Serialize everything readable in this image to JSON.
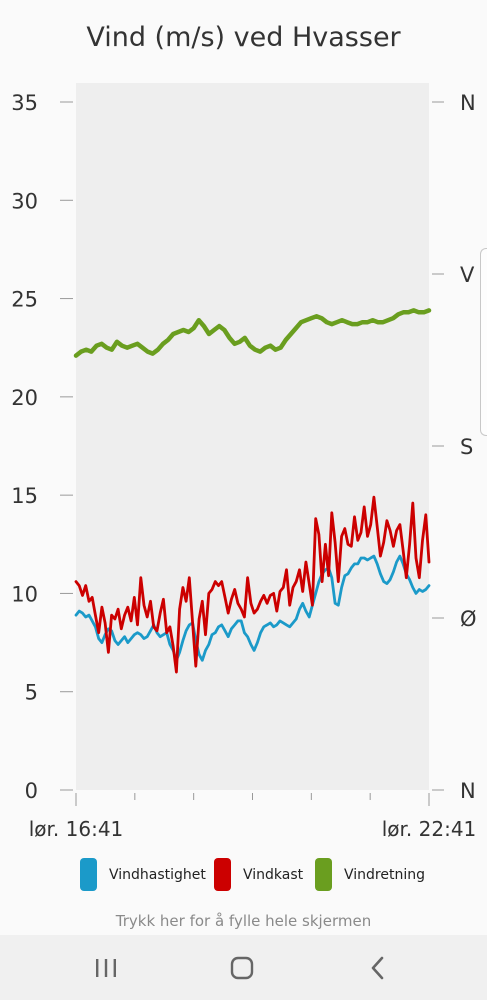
{
  "chart_data": {
    "type": "line",
    "title": "Vind (m/s) ved Hvasser",
    "x_start": "lør. 16:41",
    "x_end": "lør. 22:41",
    "ylim": [
      0,
      35
    ],
    "y_ticks": [
      "0",
      "5",
      "10",
      "15",
      "20",
      "25",
      "30",
      "35"
    ],
    "y2_ticks": [
      "N",
      "Ø",
      "S",
      "V",
      "N"
    ],
    "legend_position": "bottom",
    "grid": false,
    "series": [
      {
        "name": "Vindhastighet",
        "color": "#1b9ac9",
        "values": [
          8.9,
          9.1,
          9.0,
          8.8,
          8.9,
          8.6,
          8.3,
          7.7,
          7.5,
          7.9,
          8.2,
          8.1,
          7.6,
          7.4,
          7.6,
          7.8,
          7.5,
          7.7,
          7.9,
          8.0,
          7.9,
          7.7,
          7.8,
          8.1,
          8.4,
          8.0,
          7.8,
          7.9,
          8.0,
          7.4,
          7.1,
          6.6,
          7.0,
          7.6,
          8.1,
          8.4,
          8.5,
          7.6,
          6.9,
          6.6,
          7.1,
          7.4,
          7.9,
          8.0,
          8.3,
          8.4,
          8.1,
          7.8,
          8.2,
          8.4,
          8.6,
          8.6,
          8.0,
          7.8,
          7.4,
          7.1,
          7.5,
          8.0,
          8.3,
          8.4,
          8.5,
          8.3,
          8.4,
          8.6,
          8.5,
          8.4,
          8.3,
          8.5,
          8.7,
          9.2,
          9.5,
          9.1,
          8.8,
          9.4,
          10.0,
          10.6,
          11.0,
          11.2,
          11.3,
          10.8,
          9.5,
          9.4,
          10.3,
          10.9,
          11.0,
          11.3,
          11.5,
          11.5,
          11.8,
          11.8,
          11.7,
          11.8,
          11.9,
          11.5,
          11.0,
          10.6,
          10.5,
          10.7,
          11.1,
          11.6,
          11.9,
          11.5,
          11.0,
          10.7,
          10.3,
          10.0,
          10.2,
          10.1,
          10.2,
          10.4
        ],
        "note": "values 6 h, ~3.4 min interval"
      },
      {
        "name": "Vindkast",
        "color": "#cc0000",
        "values": [
          10.6,
          10.4,
          9.9,
          10.4,
          9.6,
          9.8,
          8.9,
          8.0,
          9.3,
          8.5,
          7.0,
          8.9,
          8.7,
          9.2,
          8.2,
          8.9,
          9.3,
          8.6,
          9.8,
          8.4,
          10.8,
          9.4,
          8.8,
          9.6,
          8.3,
          8.1,
          9.0,
          9.7,
          8.0,
          8.3,
          7.3,
          6.0,
          9.2,
          10.3,
          9.6,
          10.8,
          8.5,
          6.3,
          8.7,
          9.6,
          7.9,
          10.0,
          10.2,
          10.6,
          10.4,
          10.6,
          9.8,
          9.0,
          9.7,
          10.2,
          9.5,
          9.2,
          8.8,
          10.8,
          9.5,
          9.0,
          9.2,
          9.6,
          9.9,
          9.5,
          9.9,
          10.0,
          9.1,
          10.1,
          10.3,
          11.2,
          9.4,
          10.3,
          10.6,
          11.2,
          10.1,
          11.6,
          10.5,
          9.4,
          13.8,
          13.0,
          10.6,
          12.5,
          10.9,
          14.1,
          12.6,
          10.6,
          12.9,
          13.3,
          12.5,
          12.4,
          13.9,
          12.7,
          13.1,
          14.4,
          12.9,
          13.5,
          14.9,
          13.4,
          11.9,
          12.6,
          13.7,
          13.2,
          12.4,
          13.2,
          13.5,
          12.2,
          10.8,
          12.5,
          14.6,
          11.8,
          10.8,
          12.7,
          14.0,
          11.6
        ],
        "note": "same time axis as Vindhastighet"
      },
      {
        "name": "Vindretning",
        "color": "#6a9e1f",
        "axis": "right",
        "values": [
          22.1,
          22.3,
          22.4,
          22.3,
          22.6,
          22.7,
          22.5,
          22.4,
          22.8,
          22.6,
          22.5,
          22.6,
          22.7,
          22.5,
          22.3,
          22.2,
          22.4,
          22.7,
          22.9,
          23.2,
          23.3,
          23.4,
          23.3,
          23.5,
          23.9,
          23.6,
          23.2,
          23.4,
          23.6,
          23.4,
          23.0,
          22.7,
          22.8,
          23.0,
          22.6,
          22.4,
          22.3,
          22.5,
          22.6,
          22.4,
          22.5,
          22.9,
          23.2,
          23.5,
          23.8,
          23.9,
          24.0,
          24.1,
          24.0,
          23.8,
          23.7,
          23.8,
          23.9,
          23.8,
          23.7,
          23.7,
          23.8,
          23.8,
          23.9,
          23.8,
          23.8,
          23.9,
          24.0,
          24.2,
          24.3,
          24.3,
          24.4,
          24.3,
          24.3,
          24.4
        ],
        "note": "plotted against left scale positions"
      }
    ]
  },
  "hint_text": "Trykk her for å fylle hele skjermen",
  "nav": {
    "recents": "recents-icon",
    "home": "home-icon",
    "back": "back-icon"
  }
}
